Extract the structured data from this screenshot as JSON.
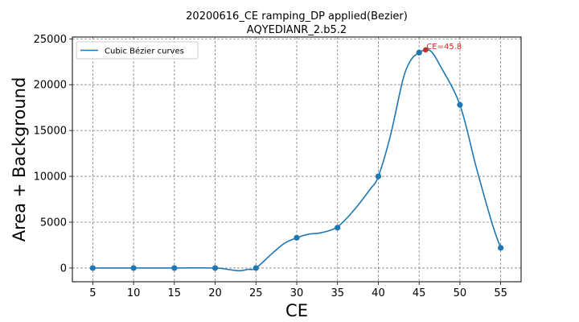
{
  "chart_data": {
    "type": "line",
    "title_line1": "20200616_CE ramping_DP applied(Bezier)",
    "title_line2": "AQYEDIANR_2.b5.2",
    "xlabel": "CE",
    "ylabel": "Area + Background",
    "xlim": [
      2.5,
      57.5
    ],
    "ylim": [
      -1500,
      25200
    ],
    "xticks": [
      5,
      10,
      15,
      20,
      25,
      30,
      35,
      40,
      45,
      50,
      55
    ],
    "yticks": [
      0,
      5000,
      10000,
      15000,
      20000,
      25000
    ],
    "grid": true,
    "legend_position": "top-left",
    "series": [
      {
        "name": "Cubic Bézier curves",
        "color": "#1f77b4",
        "curve_x": [
          5,
          10,
          15,
          20,
          21.5,
          23,
          24,
          25,
          27,
          28.5,
          30,
          31.5,
          33,
          35,
          37,
          39,
          40,
          41.5,
          43,
          44,
          45,
          45.8,
          46.5,
          47.5,
          50,
          52,
          54,
          55
        ],
        "curve_y": [
          0,
          0,
          0,
          0,
          -150,
          -300,
          -150,
          0,
          1600,
          2700,
          3300,
          3700,
          3850,
          4500,
          6300,
          8600,
          10000,
          14500,
          20500,
          22700,
          23500,
          23800,
          23600,
          22200,
          17800,
          11000,
          4700,
          2200
        ],
        "points_x": [
          5,
          10,
          15,
          20,
          25,
          30,
          35,
          40,
          45,
          50,
          55
        ],
        "points_y": [
          0,
          0,
          0,
          0,
          0,
          3300,
          4400,
          10000,
          23500,
          17800,
          2200
        ]
      }
    ],
    "annotation": {
      "x": 45.8,
      "y": 23800,
      "label": "CE=45.8",
      "color": "#d62728"
    }
  }
}
